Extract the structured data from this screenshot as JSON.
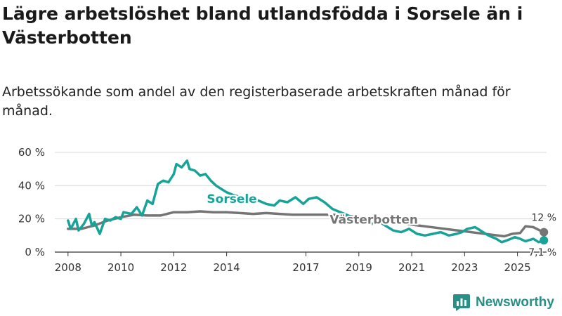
{
  "title": "Lägre arbetslöshet bland utlandsfödda i Sorsele än i Västerbotten",
  "subtitle": "Arbetssökande som andel av den registerbaserade arbetskraften månad för månad.",
  "brand": {
    "name": "Newsworthy",
    "color": "#2a8f86"
  },
  "chart_data": {
    "type": "line",
    "title": "Lägre arbetslöshet bland utlandsfödda i Sorsele än i Västerbotten",
    "subtitle": "Arbetssökande som andel av den registerbaserade arbetskraften månad för månad.",
    "xlabel": "",
    "ylabel": "",
    "ylim": [
      0,
      60
    ],
    "xlim": [
      2007.5,
      2026.1
    ],
    "grid": true,
    "y_ticks": [
      {
        "value": 0,
        "label": "0 %"
      },
      {
        "value": 20,
        "label": "20 %"
      },
      {
        "value": 40,
        "label": "40 %"
      },
      {
        "value": 60,
        "label": "60 %"
      }
    ],
    "x_ticks": [
      {
        "value": 2008,
        "label": "2008"
      },
      {
        "value": 2010,
        "label": "2010"
      },
      {
        "value": 2012,
        "label": "2012"
      },
      {
        "value": 2014,
        "label": "2014"
      },
      {
        "value": 2017,
        "label": "2017"
      },
      {
        "value": 2019,
        "label": "2019"
      },
      {
        "value": 2021,
        "label": "2021"
      },
      {
        "value": 2023,
        "label": "2023"
      },
      {
        "value": 2025,
        "label": "2025"
      }
    ],
    "series": [
      {
        "name": "Västerbotten",
        "color": "#757575",
        "end_label": "12 %",
        "points": [
          [
            2008.0,
            14
          ],
          [
            2008.5,
            14
          ],
          [
            2009.0,
            16
          ],
          [
            2009.5,
            19
          ],
          [
            2010.0,
            21
          ],
          [
            2010.5,
            22.5
          ],
          [
            2011.0,
            22
          ],
          [
            2011.5,
            22
          ],
          [
            2012.0,
            24
          ],
          [
            2012.5,
            24
          ],
          [
            2013.0,
            24.5
          ],
          [
            2013.5,
            24
          ],
          [
            2014.0,
            24
          ],
          [
            2014.5,
            23.5
          ],
          [
            2015.0,
            23
          ],
          [
            2015.5,
            23.5
          ],
          [
            2016.0,
            23
          ],
          [
            2016.5,
            22.5
          ],
          [
            2017.0,
            22.5
          ],
          [
            2017.5,
            22.5
          ],
          [
            2018.0,
            22.5
          ],
          [
            2018.5,
            22
          ],
          [
            2019.0,
            21
          ],
          [
            2019.5,
            20
          ],
          [
            2020.0,
            19
          ],
          [
            2020.5,
            18
          ],
          [
            2021.0,
            16.5
          ],
          [
            2021.5,
            15.5
          ],
          [
            2022.0,
            14.5
          ],
          [
            2022.5,
            13.5
          ],
          [
            2023.0,
            12.5
          ],
          [
            2023.5,
            11.5
          ],
          [
            2024.0,
            10.5
          ],
          [
            2024.5,
            9.5
          ],
          [
            2024.8,
            11
          ],
          [
            2025.1,
            11.5
          ],
          [
            2025.3,
            15.5
          ],
          [
            2025.6,
            15
          ],
          [
            2025.85,
            13
          ],
          [
            2026.0,
            12
          ]
        ]
      },
      {
        "name": "Sorsele",
        "color": "#17a398",
        "end_label": "7,1 %",
        "points": [
          [
            2008.0,
            19
          ],
          [
            2008.1,
            14
          ],
          [
            2008.3,
            20
          ],
          [
            2008.4,
            13
          ],
          [
            2008.6,
            17
          ],
          [
            2008.8,
            23
          ],
          [
            2008.9,
            16
          ],
          [
            2009.0,
            18
          ],
          [
            2009.2,
            11
          ],
          [
            2009.4,
            20
          ],
          [
            2009.6,
            19
          ],
          [
            2009.8,
            21
          ],
          [
            2010.0,
            20
          ],
          [
            2010.1,
            24
          ],
          [
            2010.4,
            23
          ],
          [
            2010.6,
            27
          ],
          [
            2010.8,
            22
          ],
          [
            2011.0,
            31
          ],
          [
            2011.2,
            29
          ],
          [
            2011.4,
            41
          ],
          [
            2011.6,
            43
          ],
          [
            2011.8,
            42
          ],
          [
            2012.0,
            47
          ],
          [
            2012.1,
            53
          ],
          [
            2012.3,
            51
          ],
          [
            2012.5,
            55
          ],
          [
            2012.6,
            50
          ],
          [
            2012.8,
            49
          ],
          [
            2013.0,
            46
          ],
          [
            2013.2,
            47
          ],
          [
            2013.4,
            43
          ],
          [
            2013.6,
            40
          ],
          [
            2013.8,
            38
          ],
          [
            2014.0,
            36
          ],
          [
            2014.3,
            34
          ],
          [
            2014.6,
            33
          ],
          [
            2014.9,
            30
          ],
          [
            2015.2,
            31
          ],
          [
            2015.5,
            29
          ],
          [
            2015.8,
            28
          ],
          [
            2016.0,
            31
          ],
          [
            2016.3,
            30
          ],
          [
            2016.6,
            33
          ],
          [
            2016.9,
            29
          ],
          [
            2017.1,
            32
          ],
          [
            2017.4,
            33
          ],
          [
            2017.7,
            30
          ],
          [
            2018.0,
            26
          ],
          [
            2018.3,
            24
          ],
          [
            2018.6,
            22
          ],
          [
            2018.9,
            19
          ],
          [
            2019.2,
            19
          ],
          [
            2019.5,
            17
          ],
          [
            2019.8,
            18
          ],
          [
            2020.1,
            15
          ],
          [
            2020.3,
            13
          ],
          [
            2020.6,
            12
          ],
          [
            2020.9,
            14
          ],
          [
            2021.2,
            11
          ],
          [
            2021.5,
            10
          ],
          [
            2021.8,
            11
          ],
          [
            2022.1,
            12
          ],
          [
            2022.4,
            10
          ],
          [
            2022.7,
            11
          ],
          [
            2022.9,
            12
          ],
          [
            2023.1,
            14
          ],
          [
            2023.4,
            15
          ],
          [
            2023.7,
            12
          ],
          [
            2023.9,
            10
          ],
          [
            2024.2,
            8
          ],
          [
            2024.4,
            6
          ],
          [
            2024.6,
            7
          ],
          [
            2024.9,
            9
          ],
          [
            2025.1,
            8
          ],
          [
            2025.3,
            6.5
          ],
          [
            2025.6,
            8
          ],
          [
            2025.8,
            6
          ],
          [
            2026.0,
            7.1
          ]
        ]
      }
    ]
  }
}
